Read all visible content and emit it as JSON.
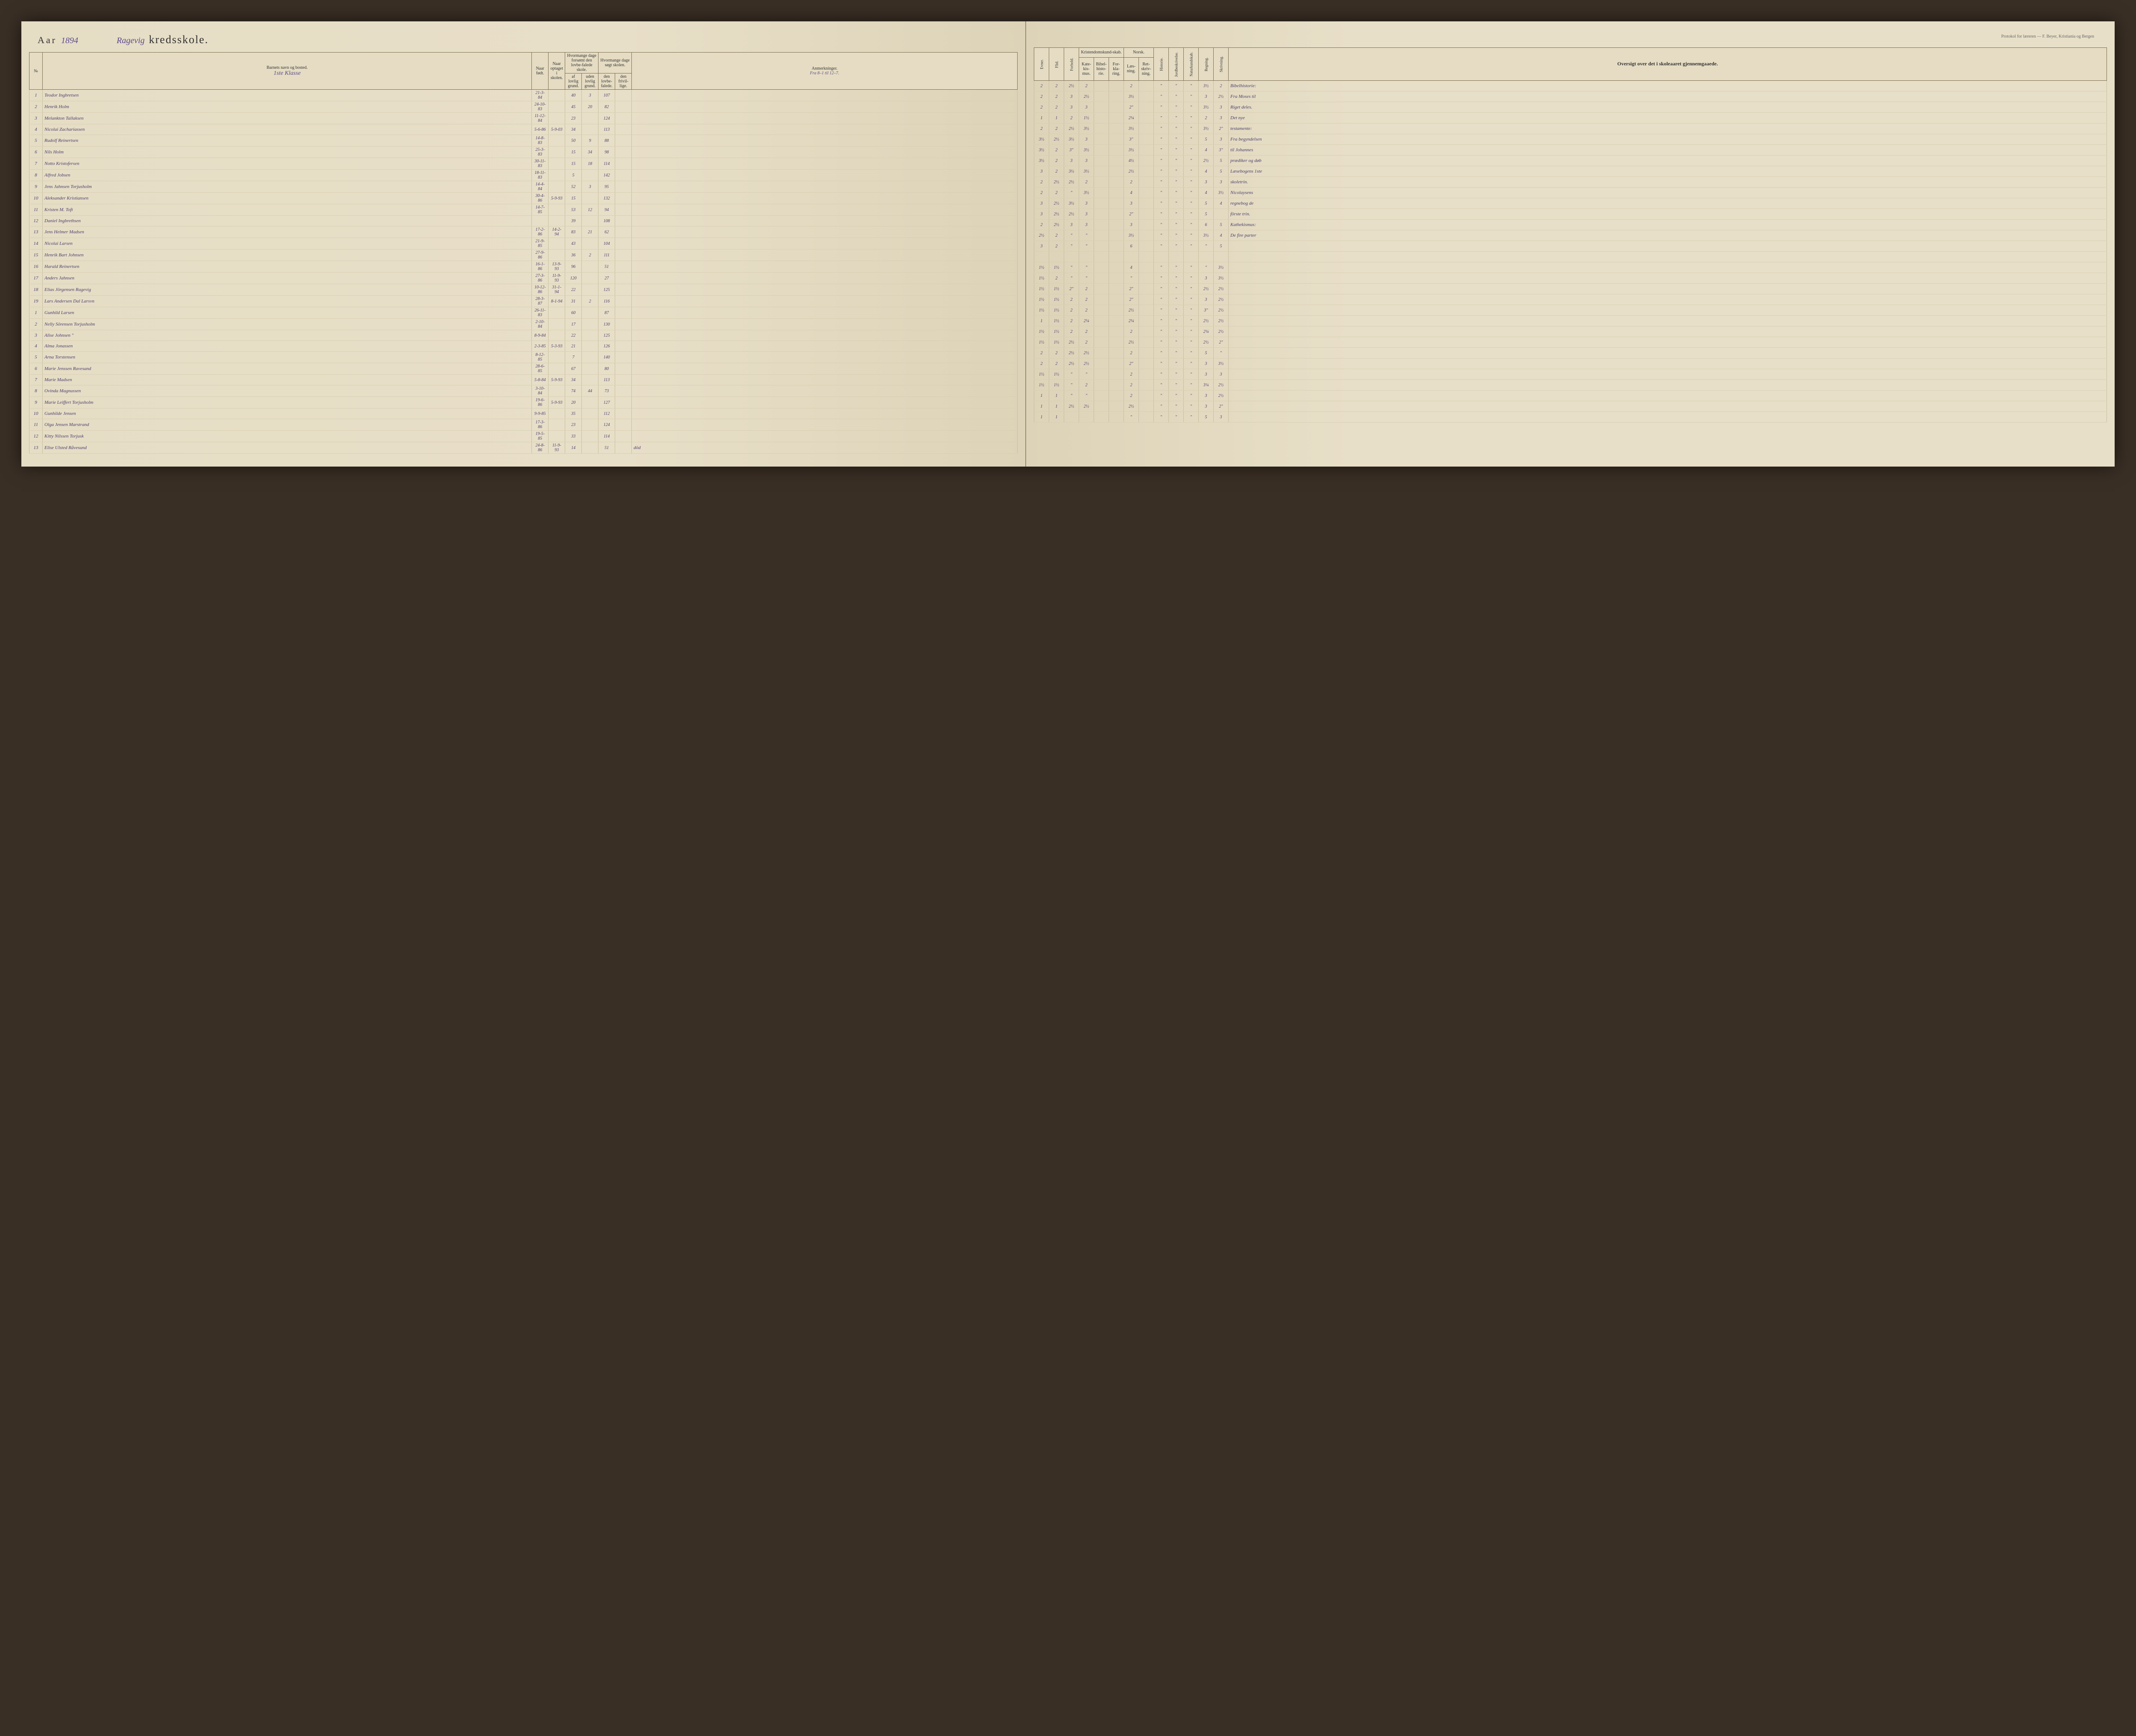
{
  "header": {
    "aar_label": "Aar",
    "year": "1894",
    "school_script": "Ragevig",
    "kredsskole": "kredsskole.",
    "protokol": "Protokol for læreren — F. Beyer, Kristiania og Bergen"
  },
  "left_headers": {
    "no": "№",
    "name": "Barnets navn og bosted.",
    "klasse": "1ste Klasse",
    "naar_fodt": "Naar født.",
    "naar_optaget": "Naar optaget i skolen.",
    "forsomt": "Hvormange dage forsømt den lovbe-falede skole.",
    "sogt": "Hvormange dage søgt skolen.",
    "af_lovlig": "af lovlig grund.",
    "uden_lovlig": "uden lovlig grund.",
    "den_lovbe": "den lovbe-falede.",
    "den_frivil": "den frivil-lige.",
    "anmerk": "Anmerkninger.",
    "anmerk_sub": "Fra 8–1 til 12–7."
  },
  "right_headers": {
    "evner": "Evner.",
    "flid": "Flid.",
    "forhold": "Forhold.",
    "krist": "Kristendomskund-skab.",
    "kate": "Kate-kis-mus.",
    "bibel": "Bibel-histo-rie.",
    "for": "For-kla-ring.",
    "norsk": "Norsk.",
    "laes": "Læs-ning.",
    "ret": "Ret-skriv-ning.",
    "historie": "Historie.",
    "jord": "Jordbeskrivelse.",
    "natur": "Naturkundskab.",
    "regning": "Regning.",
    "skrivning": "Skrivning.",
    "oversigt": "Oversigt over det i skoleaaret gjennemgaaede."
  },
  "rows": [
    {
      "n": "1",
      "name": "Teodor Ingbretsen",
      "fodt": "21-3-84",
      "opt": "",
      "f1": "40",
      "f2": "3",
      "s1": "107",
      "s2": "",
      "ev": "2",
      "fl": "2",
      "fo": "2½",
      "k1": "2",
      "k2": "",
      "k3": "",
      "n1": "2",
      "n2": "",
      "hi": "\"",
      "jo": "\"",
      "na": "\"",
      "re": "3½",
      "sk": "2",
      "note": "Bibelhistorie:"
    },
    {
      "n": "2",
      "name": "Henrik Holm",
      "fodt": "24-10-83",
      "opt": "",
      "f1": "45",
      "f2": "20",
      "s1": "82",
      "s2": "",
      "ev": "2",
      "fl": "2",
      "fo": "3",
      "k1": "2½",
      "k2": "",
      "k3": "",
      "n1": "3½",
      "n2": "",
      "hi": "\"",
      "jo": "\"",
      "na": "\"",
      "re": "3",
      "sk": "2½",
      "note": "Fra Moses til"
    },
    {
      "n": "3",
      "name": "Melankton Tallaksen",
      "fodt": "11-12-84",
      "opt": "",
      "f1": "23",
      "f2": "",
      "s1": "124",
      "s2": "",
      "ev": "2",
      "fl": "2",
      "fo": "3",
      "k1": "3",
      "k2": "",
      "k3": "",
      "n1": "2\"",
      "n2": "",
      "hi": "\"",
      "jo": "\"",
      "na": "\"",
      "re": "3½",
      "sk": "3",
      "note": "Riget deles."
    },
    {
      "n": "4",
      "name": "Nicolai Zachariassen",
      "fodt": "5-6-86",
      "opt": "5-9-03",
      "f1": "34",
      "f2": "",
      "s1": "113",
      "s2": "",
      "ev": "1",
      "fl": "1",
      "fo": "2",
      "k1": "1½",
      "k2": "",
      "k3": "",
      "n1": "2¼",
      "n2": "",
      "hi": "\"",
      "jo": "\"",
      "na": "\"",
      "re": "2",
      "sk": "3",
      "note": "Det nye"
    },
    {
      "n": "5",
      "name": "Rudolf Reinertsen",
      "fodt": "14-8-83",
      "opt": "",
      "f1": "50",
      "f2": "9",
      "s1": "88",
      "s2": "",
      "ev": "2",
      "fl": "2",
      "fo": "2½",
      "k1": "3½",
      "k2": "",
      "k3": "",
      "n1": "3½",
      "n2": "",
      "hi": "\"",
      "jo": "\"",
      "na": "\"",
      "re": "3½",
      "sk": "2\"",
      "note": "testamente:"
    },
    {
      "n": "6",
      "name": "Nils Holm",
      "fodt": "25-3-83",
      "opt": "",
      "f1": "15",
      "f2": "34",
      "s1": "98",
      "s2": "",
      "ev": "3½",
      "fl": "2½",
      "fo": "3½",
      "k1": "3",
      "k2": "",
      "k3": "",
      "n1": "3\"",
      "n2": "",
      "hi": "\"",
      "jo": "\"",
      "na": "\"",
      "re": "5",
      "sk": "3",
      "note": "Fra begyndelsen"
    },
    {
      "n": "7",
      "name": "Notto Kristofersen",
      "fodt": "30-11-83",
      "opt": "",
      "f1": "15",
      "f2": "18",
      "s1": "114",
      "s2": "",
      "ev": "3½",
      "fl": "2",
      "fo": "3\"",
      "k1": "3½",
      "k2": "",
      "k3": "",
      "n1": "3½",
      "n2": "",
      "hi": "\"",
      "jo": "\"",
      "na": "\"",
      "re": "4",
      "sk": "3\"",
      "note": "til Johannes"
    },
    {
      "n": "8",
      "name": "Alfred Jobsen",
      "fodt": "18-11-83",
      "opt": "",
      "f1": "5",
      "f2": "",
      "s1": "142",
      "s2": "",
      "ev": "3½",
      "fl": "2",
      "fo": "3",
      "k1": "3",
      "k2": "",
      "k3": "",
      "n1": "4½",
      "n2": "",
      "hi": "\"",
      "jo": "\"",
      "na": "\"",
      "re": "2½",
      "sk": "5",
      "note": "prædiker og døb"
    },
    {
      "n": "9",
      "name": "Jens Jahnsen Torjusholm",
      "fodt": "14-4-84",
      "opt": "",
      "f1": "52",
      "f2": "3",
      "s1": "95",
      "s2": "",
      "ev": "3",
      "fl": "2",
      "fo": "3½",
      "k1": "3½",
      "k2": "",
      "k3": "",
      "n1": "2½",
      "n2": "",
      "hi": "\"",
      "jo": "\"",
      "na": "\"",
      "re": "4",
      "sk": "5",
      "note": "Læsebogens 1ste"
    },
    {
      "n": "10",
      "name": "Aleksander Kristiansen",
      "fodt": "30-4-86",
      "opt": "5-9-93",
      "f1": "15",
      "f2": "",
      "s1": "132",
      "s2": "",
      "ev": "2",
      "fl": "2½",
      "fo": "2½",
      "k1": "2",
      "k2": "",
      "k3": "",
      "n1": "2",
      "n2": "",
      "hi": "\"",
      "jo": "\"",
      "na": "\"",
      "re": "3",
      "sk": "3",
      "note": "skoletrin."
    },
    {
      "n": "11",
      "name": "Kristen M. Toft",
      "fodt": "14-7-85",
      "opt": "",
      "f1": "53",
      "f2": "12",
      "s1": "94",
      "s2": "",
      "ev": "2",
      "fl": "2",
      "fo": "\"",
      "k1": "3½",
      "k2": "",
      "k3": "",
      "n1": "4",
      "n2": "",
      "hi": "\"",
      "jo": "\"",
      "na": "\"",
      "re": "4",
      "sk": "3½",
      "note": "Nicolaysens"
    },
    {
      "n": "12",
      "name": "Daniel Ingbrethsen",
      "fodt": "",
      "opt": "",
      "f1": "39",
      "f2": "",
      "s1": "108",
      "s2": "",
      "ev": "3",
      "fl": "2½",
      "fo": "3½",
      "k1": "3",
      "k2": "",
      "k3": "",
      "n1": "3",
      "n2": "",
      "hi": "\"",
      "jo": "\"",
      "na": "\"",
      "re": "5",
      "sk": "4",
      "note": "regnebog de"
    },
    {
      "n": "13",
      "name": "Jens Helmer Madsen",
      "fodt": "17-2-86",
      "opt": "14-2-94",
      "f1": "83",
      "f2": "21",
      "s1": "62",
      "s2": "",
      "ev": "3",
      "fl": "2½",
      "fo": "2½",
      "k1": "3",
      "k2": "",
      "k3": "",
      "n1": "2\"",
      "n2": "",
      "hi": "\"",
      "jo": "\"",
      "na": "\"",
      "re": "5",
      "sk": "",
      "note": "förste trin."
    },
    {
      "n": "14",
      "name": "Nicolai Larsen",
      "fodt": "21-9-85",
      "opt": "",
      "f1": "43",
      "f2": "",
      "s1": "104",
      "s2": "",
      "ev": "2",
      "fl": "2½",
      "fo": "3",
      "k1": "3",
      "k2": "",
      "k3": "",
      "n1": "3",
      "n2": "",
      "hi": "\"",
      "jo": "\"",
      "na": "\"",
      "re": "6",
      "sk": "5",
      "note": "Kathekismus:"
    },
    {
      "n": "15",
      "name": "Henrik Bart Johnsen",
      "fodt": "27-9-86",
      "opt": "",
      "f1": "36",
      "f2": "2",
      "s1": "111",
      "s2": "",
      "ev": "2½",
      "fl": "2",
      "fo": "\"",
      "k1": "\"",
      "k2": "",
      "k3": "",
      "n1": "3½",
      "n2": "",
      "hi": "\"",
      "jo": "\"",
      "na": "\"",
      "re": "3½",
      "sk": "4",
      "note": "De fire parter"
    },
    {
      "n": "16",
      "name": "Harald Reinertsen",
      "fodt": "16-1-86",
      "opt": "13-9-93",
      "f1": "96",
      "f2": "",
      "s1": "51",
      "s2": "",
      "ev": "3",
      "fl": "2",
      "fo": "\"",
      "k1": "\"",
      "k2": "",
      "k3": "",
      "n1": "6",
      "n2": "",
      "hi": "\"",
      "jo": "\"",
      "na": "\"",
      "re": "\"",
      "sk": "5",
      "note": ""
    },
    {
      "n": "17",
      "name": "Anders Jahnsen",
      "fodt": "27-3-86",
      "opt": "11-9-93",
      "f1": "120",
      "f2": "",
      "s1": "27",
      "s2": "",
      "ev": "",
      "fl": "",
      "fo": "",
      "k1": "",
      "k2": "",
      "k3": "",
      "n1": "",
      "n2": "",
      "hi": "",
      "jo": "",
      "na": "",
      "re": "",
      "sk": "",
      "note": ""
    },
    {
      "n": "18",
      "name": "Elias Jörgensen Ragevig",
      "fodt": "10-12-86",
      "opt": "31-1-94",
      "f1": "22",
      "f2": "",
      "s1": "125",
      "s2": "",
      "ev": "1½",
      "fl": "1½",
      "fo": "\"",
      "k1": "\"",
      "k2": "",
      "k3": "",
      "n1": "4",
      "n2": "",
      "hi": "\"",
      "jo": "\"",
      "na": "\"",
      "re": "\"",
      "sk": "3½",
      "note": ""
    },
    {
      "n": "19",
      "name": "Lars Andersen Dal Larsvn",
      "fodt": "28-3-87",
      "opt": "8-1-94",
      "f1": "31",
      "f2": "2",
      "s1": "116",
      "s2": "",
      "ev": "1½",
      "fl": "2",
      "fo": "\"",
      "k1": "\"",
      "k2": "",
      "k3": "",
      "n1": "\"",
      "n2": "",
      "hi": "\"",
      "jo": "\"",
      "na": "\"",
      "re": "3",
      "sk": "3½",
      "note": ""
    },
    {
      "n": "1",
      "name": "Gunhild Larsen",
      "fodt": "26-11-83",
      "opt": "",
      "f1": "60",
      "f2": "",
      "s1": "87",
      "s2": "",
      "ev": "1½",
      "fl": "1½",
      "fo": "2\"",
      "k1": "2",
      "k2": "",
      "k3": "",
      "n1": "2\"",
      "n2": "",
      "hi": "\"",
      "jo": "\"",
      "na": "\"",
      "re": "2½",
      "sk": "2½",
      "note": ""
    },
    {
      "n": "2",
      "name": "Nelly Sörensen Torjusholm",
      "fodt": "2-10-84",
      "opt": "",
      "f1": "17",
      "f2": "",
      "s1": "130",
      "s2": "",
      "ev": "1½",
      "fl": "1½",
      "fo": "2",
      "k1": "2",
      "k2": "",
      "k3": "",
      "n1": "2\"",
      "n2": "",
      "hi": "\"",
      "jo": "\"",
      "na": "\"",
      "re": "3",
      "sk": "2½",
      "note": ""
    },
    {
      "n": "3",
      "name": "Alise Johnsen \"",
      "fodt": "8-9-84",
      "opt": "",
      "f1": "22",
      "f2": "",
      "s1": "125",
      "s2": "",
      "ev": "1½",
      "fl": "1½",
      "fo": "2",
      "k1": "2",
      "k2": "",
      "k3": "",
      "n1": "2½",
      "n2": "",
      "hi": "\"",
      "jo": "\"",
      "na": "\"",
      "re": "3\"",
      "sk": "2½",
      "note": ""
    },
    {
      "n": "4",
      "name": "Alma Jonassen",
      "fodt": "2-3-85",
      "opt": "5-3-93",
      "f1": "21",
      "f2": "",
      "s1": "126",
      "s2": "",
      "ev": "1",
      "fl": "1½",
      "fo": "2",
      "k1": "2¼",
      "k2": "",
      "k3": "",
      "n1": "2¼",
      "n2": "",
      "hi": "\"",
      "jo": "\"",
      "na": "\"",
      "re": "2½",
      "sk": "2½",
      "note": ""
    },
    {
      "n": "5",
      "name": "Arna Torstensen",
      "fodt": "8-12-85",
      "opt": "",
      "f1": "7",
      "f2": "",
      "s1": "140",
      "s2": "",
      "ev": "1½",
      "fl": "1½",
      "fo": "2",
      "k1": "2",
      "k2": "",
      "k3": "",
      "n1": "2",
      "n2": "",
      "hi": "\"",
      "jo": "\"",
      "na": "\"",
      "re": "2¼",
      "sk": "2½",
      "note": ""
    },
    {
      "n": "6",
      "name": "Marie Jenssen Ravesand",
      "fodt": "28-6-85",
      "opt": "",
      "f1": "67",
      "f2": "",
      "s1": "80",
      "s2": "",
      "ev": "1½",
      "fl": "1½",
      "fo": "2½",
      "k1": "2",
      "k2": "",
      "k3": "",
      "n1": "2½",
      "n2": "",
      "hi": "\"",
      "jo": "\"",
      "na": "\"",
      "re": "2½",
      "sk": "2\"",
      "note": ""
    },
    {
      "n": "7",
      "name": "Marie Madsen",
      "fodt": "5-8-84",
      "opt": "5-9-93",
      "f1": "34",
      "f2": "",
      "s1": "113",
      "s2": "",
      "ev": "2",
      "fl": "2",
      "fo": "2½",
      "k1": "2½",
      "k2": "",
      "k3": "",
      "n1": "2",
      "n2": "",
      "hi": "\"",
      "jo": "\"",
      "na": "\"",
      "re": "5",
      "sk": "\"",
      "note": ""
    },
    {
      "n": "8",
      "name": "Ovinda Magnussen",
      "fodt": "3-10-84",
      "opt": "",
      "f1": "74",
      "f2": "44",
      "s1": "73",
      "s2": "",
      "ev": "2",
      "fl": "2",
      "fo": "2½",
      "k1": "2½",
      "k2": "",
      "k3": "",
      "n1": "2\"",
      "n2": "",
      "hi": "\"",
      "jo": "\"",
      "na": "\"",
      "re": "3",
      "sk": "3½",
      "note": ""
    },
    {
      "n": "9",
      "name": "Marie Leiffert Torjusholm",
      "fodt": "19-6-86",
      "opt": "5-9-93",
      "f1": "20",
      "f2": "",
      "s1": "127",
      "s2": "",
      "ev": "1½",
      "fl": "1½",
      "fo": "\"",
      "k1": "\"",
      "k2": "",
      "k3": "",
      "n1": "2",
      "n2": "",
      "hi": "\"",
      "jo": "\"",
      "na": "\"",
      "re": "3",
      "sk": "3",
      "note": ""
    },
    {
      "n": "10",
      "name": "Gunhilde Jensen",
      "fodt": "9-9-85",
      "opt": "",
      "f1": "35",
      "f2": "",
      "s1": "112",
      "s2": "",
      "ev": "1½",
      "fl": "1½",
      "fo": "\"",
      "k1": "2",
      "k2": "",
      "k3": "",
      "n1": "2",
      "n2": "",
      "hi": "\"",
      "jo": "\"",
      "na": "\"",
      "re": "3¼",
      "sk": "2½",
      "note": ""
    },
    {
      "n": "11",
      "name": "Olga Jensen Marstrand",
      "fodt": "17-3-86",
      "opt": "",
      "f1": "23",
      "f2": "",
      "s1": "124",
      "s2": "",
      "ev": "1",
      "fl": "1",
      "fo": "\"",
      "k1": "\"",
      "k2": "",
      "k3": "",
      "n1": "2",
      "n2": "",
      "hi": "\"",
      "jo": "\"",
      "na": "\"",
      "re": "3",
      "sk": "2½",
      "note": ""
    },
    {
      "n": "12",
      "name": "Kitty Nilssen Torjusk",
      "fodt": "19-5-85",
      "opt": "",
      "f1": "33",
      "f2": "",
      "s1": "114",
      "s2": "",
      "ev": "1",
      "fl": "1",
      "fo": "2½",
      "k1": "2½",
      "k2": "",
      "k3": "",
      "n1": "2½",
      "n2": "",
      "hi": "\"",
      "jo": "\"",
      "na": "\"",
      "re": "3",
      "sk": "2\"",
      "note": ""
    },
    {
      "n": "13",
      "name": "Elise Ulsted Råvesund",
      "fodt": "24-8-86",
      "opt": "11-9-93",
      "f1": "14",
      "f2": "",
      "s1": "51",
      "s2": "",
      "ann": "död",
      "ev": "1",
      "fl": "1",
      "fo": "",
      "k1": "",
      "k2": "",
      "k3": "",
      "n1": "\"",
      "n2": "",
      "hi": "\"",
      "jo": "\"",
      "na": "\"",
      "re": "5",
      "sk": "3",
      "note": ""
    }
  ],
  "colors": {
    "paper": "#e8dfc8",
    "ink_script": "#4a3d6b",
    "ink_print": "#333333",
    "rule": "#c8bd9e",
    "rule_strong": "#7a6d50"
  }
}
